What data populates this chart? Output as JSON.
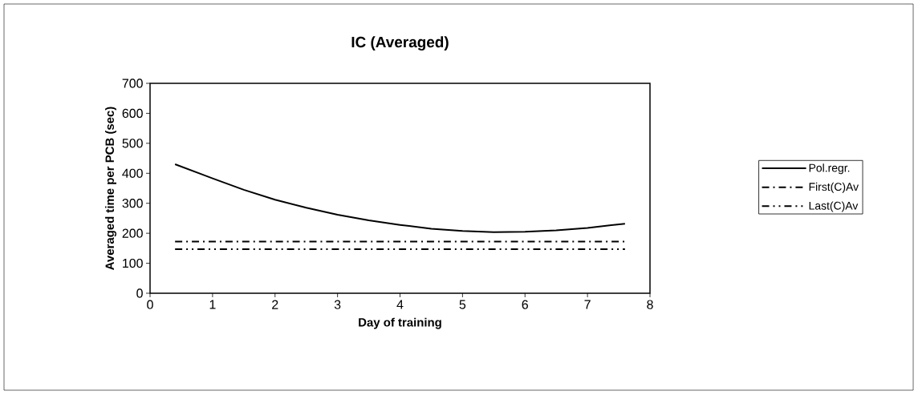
{
  "chart_data": {
    "type": "line",
    "title": "IC (Averaged)",
    "xlabel": "Day of training",
    "ylabel": "Averaged time per PCB (sec)",
    "xlim": [
      0,
      8
    ],
    "xticks": [
      0,
      1,
      2,
      3,
      4,
      5,
      6,
      7,
      8
    ],
    "ylim": [
      0,
      700
    ],
    "yticks": [
      0,
      100,
      200,
      300,
      400,
      500,
      600,
      700
    ],
    "grid": false,
    "legend": "right",
    "series": [
      {
        "name": "Pol.regr.",
        "color": "#000000",
        "line_style": "solid",
        "x": [
          0.4,
          1,
          1.5,
          2,
          2.5,
          3,
          3.5,
          4,
          4.5,
          5,
          5.5,
          6,
          6.5,
          7,
          7.6
        ],
        "values": [
          430,
          383,
          345,
          312,
          285,
          262,
          243,
          228,
          215,
          208,
          204,
          205,
          210,
          218,
          232
        ]
      },
      {
        "name": "First(C)Av",
        "color": "#000000",
        "line_style": "dashed",
        "x": [
          0.4,
          7.6
        ],
        "values": [
          172,
          172
        ]
      },
      {
        "name": "Last(C)Av",
        "color": "#000000",
        "line_style": "dotted",
        "x": [
          0.4,
          7.6
        ],
        "values": [
          147,
          147
        ]
      }
    ]
  }
}
